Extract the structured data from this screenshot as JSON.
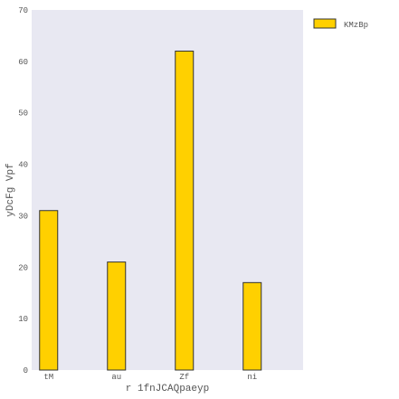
{
  "chart_data": {
    "type": "bar",
    "categories": [
      "tM",
      "au",
      "Zf",
      "ni"
    ],
    "series": [
      {
        "name": "KMzBp",
        "values": [
          31,
          21,
          62,
          17
        ],
        "color": "#FFD000"
      }
    ],
    "xlabel": "r 1fnJCAQpaeyp",
    "ylabel": "yDcFg Vpf",
    "ylim": [
      0,
      70
    ],
    "yticks": [
      0,
      10,
      20,
      30,
      40,
      50,
      60,
      70
    ],
    "grid": false,
    "legend_position": "top-right outside plot",
    "plot_background": "#E8E8F2",
    "bar_edge_color": "#333333"
  }
}
